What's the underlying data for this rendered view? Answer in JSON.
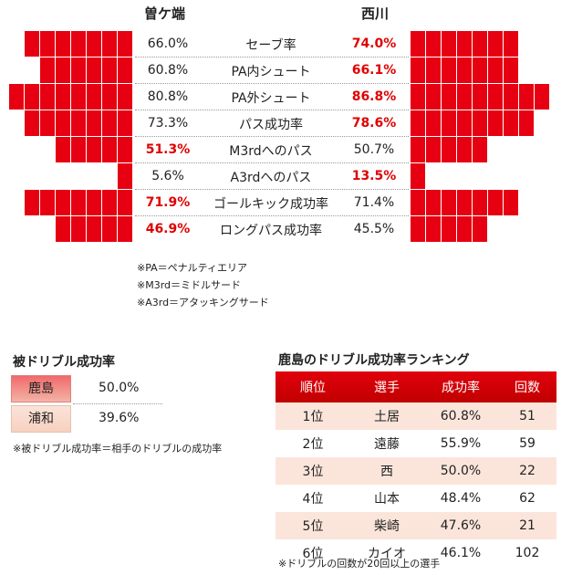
{
  "header": {
    "left_name": "曽ケ端",
    "right_name": "西川"
  },
  "chart_data": {
    "type": "bar",
    "categories": [
      "セーブ率",
      "PA内シュート",
      "PA外シュート",
      "パス成功率",
      "M3rdへのパス",
      "A3rdへのパス",
      "ゴールキック成功率",
      "ロングパス成功率"
    ],
    "series": [
      {
        "name": "曽ケ端",
        "values": [
          66.0,
          60.8,
          80.8,
          73.3,
          51.3,
          5.6,
          71.9,
          46.9
        ],
        "labels": [
          "66.0%",
          "60.8%",
          "80.8%",
          "73.3%",
          "51.3%",
          "5.6%",
          "71.9%",
          "46.9%"
        ]
      },
      {
        "name": "西川",
        "values": [
          74.0,
          66.1,
          86.8,
          78.6,
          50.7,
          13.5,
          71.4,
          45.5
        ],
        "labels": [
          "74.0%",
          "66.1%",
          "86.8%",
          "78.6%",
          "50.7%",
          "13.5%",
          "71.4%",
          "45.5%"
        ]
      }
    ],
    "highlight": [
      "right",
      "right",
      "right",
      "right",
      "left",
      "right",
      "left",
      "left"
    ],
    "bar_color": "#e60012",
    "highlight_color": "#e00000"
  },
  "notes": [
    "※PA＝ペナルティエリア",
    "※M3rd＝ミドルサード",
    "※A3rd＝アタッキングサード"
  ],
  "dribble_against": {
    "title": "被ドリブル成功率",
    "rows": [
      {
        "team": "鹿島",
        "value": "50.0%"
      },
      {
        "team": "浦和",
        "value": "39.6%"
      }
    ],
    "note": "※被ドリブル成功率＝相手のドリブルの成功率"
  },
  "ranking": {
    "title": "鹿島のドリブル成功率ランキング",
    "columns": [
      "順位",
      "選手",
      "成功率",
      "回数"
    ],
    "rows": [
      [
        "1位",
        "土居",
        "60.8%",
        "51"
      ],
      [
        "2位",
        "遠藤",
        "55.9%",
        "59"
      ],
      [
        "3位",
        "西",
        "50.0%",
        "22"
      ],
      [
        "4位",
        "山本",
        "48.4%",
        "62"
      ],
      [
        "5位",
        "柴崎",
        "47.6%",
        "21"
      ],
      [
        "6位",
        "カイオ",
        "46.1%",
        "102"
      ]
    ],
    "note": "※ドリブルの回数が20回以上の選手"
  }
}
